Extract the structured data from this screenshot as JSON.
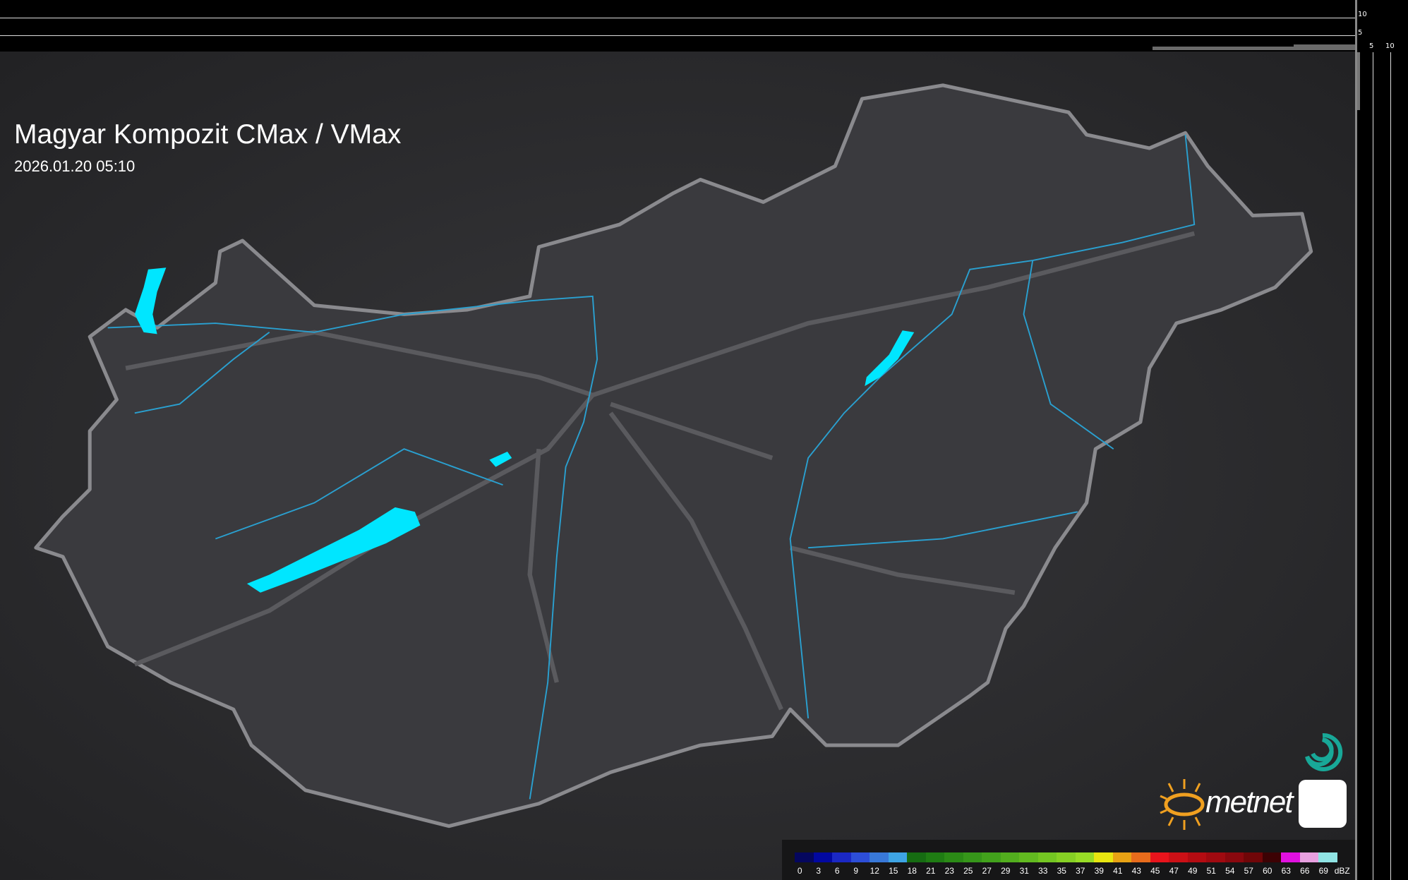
{
  "header": {
    "title": "Magyar Kompozit CMax / VMax",
    "timestamp": "2026.01.20 05:10"
  },
  "scale_ticks": {
    "vertical": [
      "10",
      "5"
    ],
    "horizontal": [
      "5",
      "10"
    ]
  },
  "legend": {
    "unit": "dBZ",
    "labels": [
      "0",
      "3",
      "6",
      "9",
      "12",
      "15",
      "18",
      "21",
      "23",
      "25",
      "27",
      "29",
      "31",
      "33",
      "35",
      "37",
      "39",
      "41",
      "43",
      "45",
      "47",
      "49",
      "51",
      "54",
      "57",
      "60",
      "63",
      "66",
      "69"
    ],
    "colors": [
      "#05075e",
      "#0208a0",
      "#1b28c4",
      "#2d4ed8",
      "#3878d8",
      "#3ea4e4",
      "#166c12",
      "#1f7c13",
      "#2b8a16",
      "#36961a",
      "#42a21c",
      "#52ae1e",
      "#62ba20",
      "#74c622",
      "#86d024",
      "#98dc26",
      "#e8e610",
      "#e8a214",
      "#e86c1c",
      "#e8141c",
      "#cc1016",
      "#b40c12",
      "#a00a10",
      "#8a080e",
      "#700608",
      "#3c0204",
      "#e010e0",
      "#e8a0e0",
      "#90e4e4"
    ]
  },
  "map": {
    "land_color": "#3a3a3e",
    "border_color": "#8a8a8e",
    "river_color": "#2aa0d0",
    "lake_color": "#00e6ff",
    "road_color": "#5a5a5e"
  },
  "logo": {
    "text": "metnet",
    "sun_color": "#f0a020",
    "teal": "#18a898"
  }
}
